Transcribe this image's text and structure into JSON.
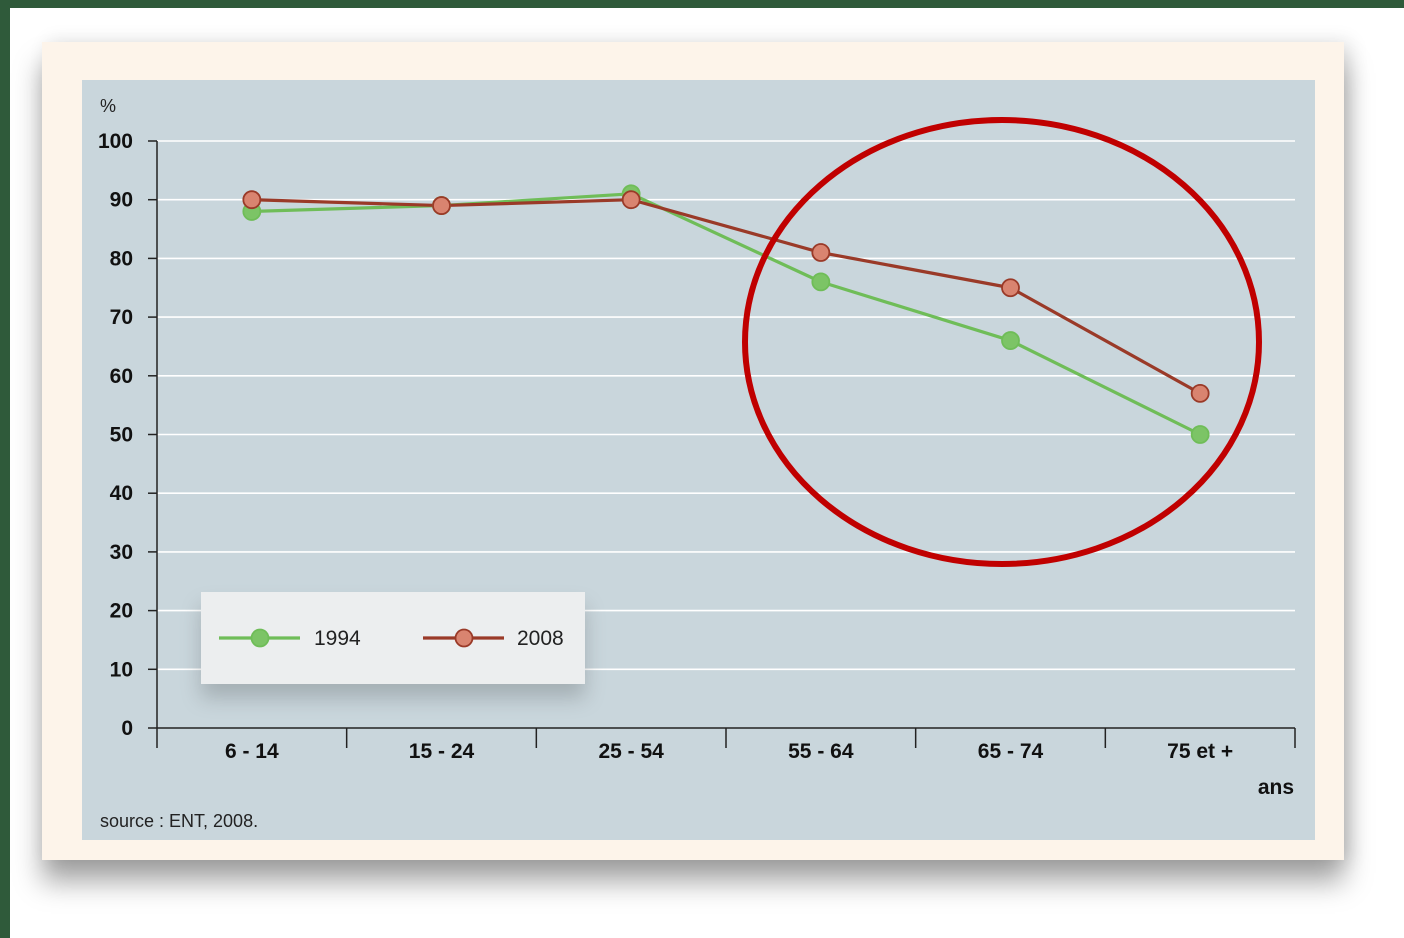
{
  "colors": {
    "plot_bg": "#c9d6dc",
    "gridline": "#ffffff",
    "series_1994": "#6fbd58",
    "series_1994_marker": "#7cc466",
    "series_2008": "#9a3a28",
    "series_2008_marker": "#d98470",
    "annotation_ellipse": "#c00000",
    "legend_bg": "#eceeef"
  },
  "chart_data": {
    "type": "line",
    "ylabel": "%",
    "xlabel": "ans",
    "categories": [
      "6 - 14",
      "15 - 24",
      "25 - 54",
      "55 - 64",
      "65 - 74",
      "75 et +"
    ],
    "ylim": [
      0,
      100
    ],
    "yticks": [
      0,
      10,
      20,
      30,
      40,
      50,
      60,
      70,
      80,
      90,
      100
    ],
    "grid": true,
    "legend_position": "bottom-left",
    "series": [
      {
        "name": "1994",
        "values": [
          88,
          89,
          91,
          76,
          66,
          50
        ]
      },
      {
        "name": "2008",
        "values": [
          90,
          89,
          90,
          81,
          75,
          57
        ]
      }
    ],
    "source": "source : ENT, 2008.",
    "annotation": "red-ellipse-highlighting-55-and-over"
  }
}
